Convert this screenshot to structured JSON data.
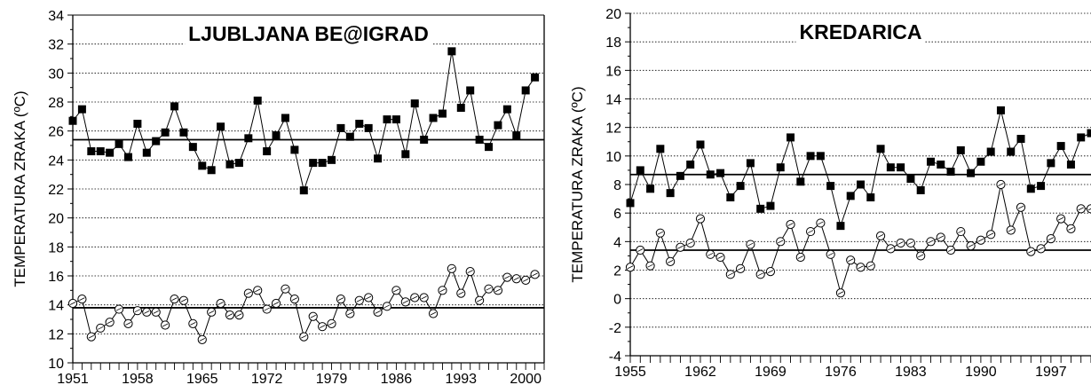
{
  "chart_data": [
    {
      "type": "line",
      "title": "LJUBLJANA BE@IGRAD",
      "ylabel": "TEMPERATURA ZRAKA (ºC)",
      "xlabel": "",
      "xlim": [
        1951,
        2002
      ],
      "ylim": [
        10,
        34
      ],
      "yticks": [
        10,
        12,
        14,
        16,
        18,
        20,
        22,
        24,
        26,
        28,
        30,
        32,
        34
      ],
      "xticks": [
        1951,
        1958,
        1965,
        1972,
        1979,
        1986,
        1993,
        2000
      ],
      "grid": "horizontal-dotted",
      "start_year": 1951,
      "series": [
        {
          "marker": "filled-square",
          "values": [
            26.7,
            27.5,
            24.6,
            24.6,
            24.5,
            25.1,
            24.2,
            26.5,
            24.5,
            25.3,
            25.9,
            27.7,
            25.9,
            24.9,
            23.6,
            23.3,
            26.3,
            23.7,
            23.8,
            25.5,
            28.1,
            24.6,
            25.7,
            26.9,
            24.7,
            21.9,
            23.8,
            23.8,
            24.0,
            26.2,
            25.6,
            26.5,
            26.2,
            24.1,
            26.8,
            26.8,
            24.4,
            27.9,
            25.4,
            26.9,
            27.2,
            31.5,
            27.6,
            28.8,
            25.4,
            24.9,
            26.4,
            27.5,
            25.7,
            28.8,
            29.7
          ]
        },
        {
          "marker": "open-circle",
          "values": [
            14.1,
            14.4,
            11.8,
            12.4,
            12.8,
            13.7,
            12.7,
            13.6,
            13.5,
            13.5,
            12.6,
            14.4,
            14.3,
            12.7,
            11.6,
            13.5,
            14.1,
            13.3,
            13.3,
            14.8,
            15.0,
            13.7,
            14.1,
            15.1,
            14.4,
            11.8,
            13.2,
            12.5,
            12.7,
            14.4,
            13.4,
            14.3,
            14.5,
            13.5,
            13.9,
            15.0,
            14.2,
            14.5,
            14.5,
            13.4,
            15.0,
            16.5,
            14.8,
            16.3,
            14.3,
            15.1,
            15.0,
            15.9,
            15.8,
            15.7,
            16.1
          ]
        }
      ],
      "reference_lines": [
        25.4,
        13.8
      ]
    },
    {
      "type": "line",
      "title": "KREDARICA",
      "ylabel": "TEMPERATURA ZRAKA (ºC)",
      "xlabel": "",
      "xlim": [
        1955,
        2001
      ],
      "ylim": [
        -4,
        20
      ],
      "yticks": [
        -4,
        -2,
        0,
        2,
        4,
        6,
        8,
        10,
        12,
        14,
        16,
        18,
        20
      ],
      "xticks": [
        1955,
        1962,
        1969,
        1976,
        1983,
        1990,
        1997
      ],
      "grid": "horizontal-dotted",
      "start_year": 1955,
      "series": [
        {
          "marker": "filled-square",
          "values": [
            6.7,
            9.0,
            7.7,
            10.5,
            7.4,
            8.6,
            9.4,
            10.8,
            8.7,
            8.8,
            7.1,
            7.9,
            9.5,
            6.3,
            6.5,
            9.2,
            11.3,
            8.2,
            10.0,
            10.0,
            7.9,
            5.1,
            7.2,
            8.0,
            7.1,
            10.5,
            9.2,
            9.2,
            8.4,
            7.6,
            9.6,
            9.4,
            8.9,
            10.4,
            8.8,
            9.6,
            10.3,
            13.2,
            10.3,
            11.2,
            7.7,
            7.9,
            9.5,
            10.7,
            9.4,
            11.3,
            11.6
          ]
        },
        {
          "marker": "open-circle",
          "values": [
            2.2,
            3.4,
            2.3,
            4.6,
            2.6,
            3.6,
            3.9,
            5.6,
            3.1,
            2.9,
            1.7,
            2.1,
            3.8,
            1.7,
            1.9,
            4.0,
            5.2,
            2.9,
            4.7,
            5.3,
            3.1,
            0.4,
            2.7,
            2.2,
            2.3,
            4.4,
            3.5,
            3.9,
            3.9,
            3.0,
            4.0,
            4.3,
            3.4,
            4.7,
            3.7,
            4.1,
            4.5,
            8.0,
            4.8,
            6.4,
            3.3,
            3.5,
            4.2,
            5.6,
            4.9,
            6.3,
            6.3
          ]
        }
      ],
      "reference_lines": [
        8.7,
        3.4
      ]
    }
  ]
}
